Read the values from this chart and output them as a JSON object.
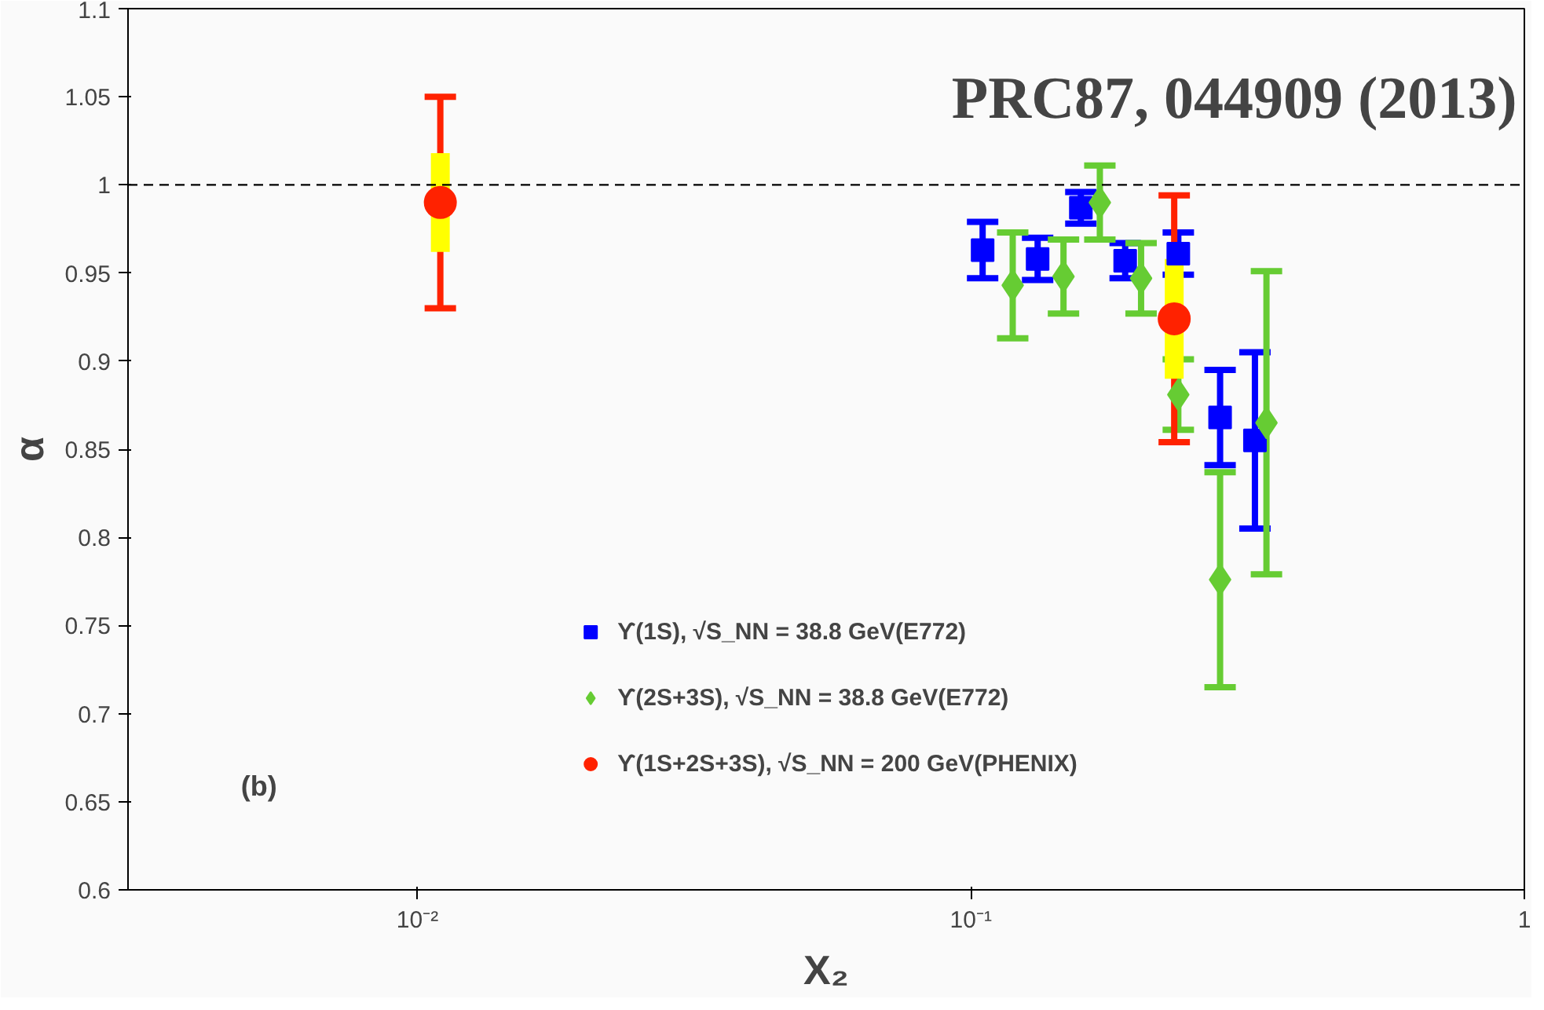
{
  "chart_data": {
    "type": "scatter",
    "xlabel": "X₂",
    "ylabel": "α",
    "log": "x",
    "xlim": [
      0.003,
      1
    ],
    "ylim": [
      0.6,
      1.1
    ],
    "xticks": [
      {
        "value": 0.01,
        "label": "10⁻²"
      },
      {
        "value": 0.1,
        "label": "10⁻¹"
      },
      {
        "value": 1,
        "label": "1"
      }
    ],
    "yticks": [
      0.6,
      0.65,
      0.7,
      0.75,
      0.8,
      0.85,
      0.9,
      0.95,
      1,
      1.05,
      1.1
    ],
    "grid": false,
    "legend": "bottom",
    "ref_lines": [
      {
        "axis": "y",
        "value": 1,
        "line_style": "dashed",
        "color": "#000000"
      }
    ],
    "annotations": [
      "PRC87, 044909 (2013)",
      "(b)"
    ],
    "series": [
      {
        "type": "bar",
        "color": "#ffff00",
        "x": [
          0.011,
          0.233
        ],
        "base": [
          0.962,
          0.89
        ],
        "values": [
          0.056,
          0.068
        ]
      },
      {
        "name": "ϒ(1S), √S_NN = 38.8 GeV(E772)",
        "color": "#0000ff",
        "marker": "square",
        "x": [
          0.105,
          0.132,
          0.158,
          0.19,
          0.237,
          0.282,
          0.326
        ],
        "values": [
          0.963,
          0.958,
          0.987,
          0.957,
          0.961,
          0.868,
          0.855
        ],
        "errors": [
          0.016,
          0.012,
          0.009,
          0.01,
          0.012,
          0.027,
          0.05
        ]
      },
      {
        "name": "ϒ(2S+3S), √S_NN = 38.8 GeV(E772)",
        "color": "#66cc33",
        "marker": "diamond",
        "x": [
          0.119,
          0.147,
          0.171,
          0.203,
          0.237,
          0.282,
          0.342
        ],
        "values": [
          0.943,
          0.948,
          0.99,
          0.947,
          0.881,
          0.776,
          0.865
        ],
        "errors": [
          0.03,
          0.021,
          0.021,
          0.02,
          0.02,
          0.061,
          0.086
        ]
      },
      {
        "name": "ϒ(1S+2S+3S), √S_NN = 200 GeV(PHENIX)",
        "color": "#ff2200",
        "marker": "circle",
        "x": [
          0.011,
          0.233
        ],
        "values": [
          0.99,
          0.924
        ],
        "errors": [
          0.06,
          0.07
        ]
      }
    ]
  }
}
